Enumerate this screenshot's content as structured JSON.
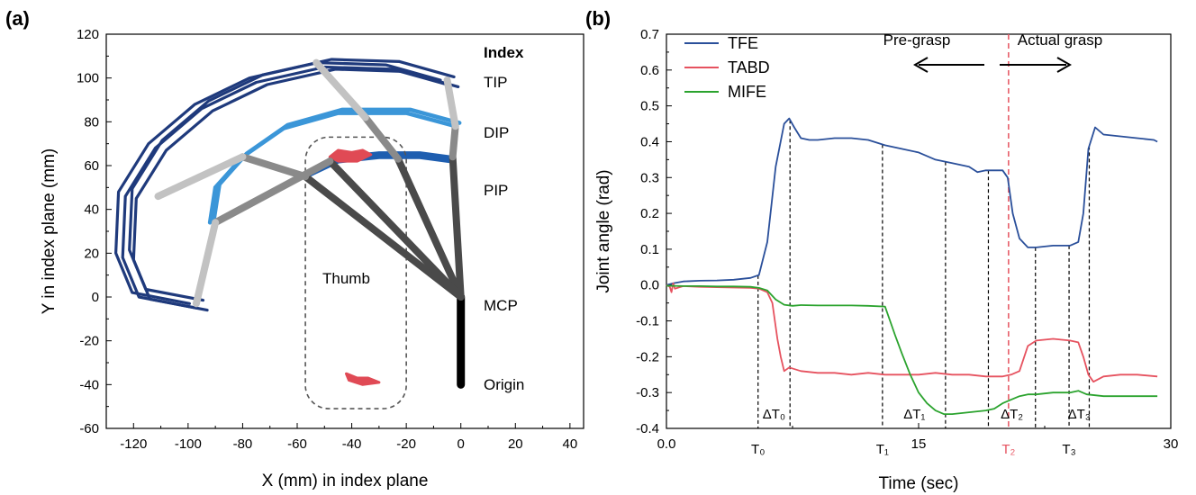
{
  "chart_data": [
    {
      "panel": "(a)",
      "type": "scatter",
      "xlabel": "X (mm) in index plane",
      "ylabel": "Y in index plane (mm)",
      "xlim": [
        -130,
        45
      ],
      "ylim": [
        -60,
        120
      ],
      "xticks": [
        "-120",
        "-100",
        "-80",
        "-60",
        "-40",
        "-20",
        "0",
        "20",
        "40"
      ],
      "yticks": [
        "120",
        "100",
        "80",
        "60",
        "40",
        "20",
        "0",
        "-20",
        "-40",
        "-60"
      ],
      "grid": false,
      "colors": {
        "tip": "#1f3a7c",
        "dip": "#3b96d8",
        "pip": "#1e5eb0",
        "thumb": "#e04a55",
        "link_light": "#c2c2c2",
        "link_mid": "#8a8a8a",
        "link_dark": "#4a4a4a",
        "origin": "#000000"
      },
      "annotations": {
        "index": "Index",
        "tip": "TIP",
        "dip": "DIP",
        "pip": "PIP",
        "mcp": "MCP",
        "origin": "Origin",
        "thumb": "Thumb"
      },
      "joints": {
        "origin": [
          0,
          -40
        ],
        "mcp": [
          0,
          0
        ],
        "pose_extended": {
          "pip": [
            -3,
            64
          ],
          "dip": [
            -2,
            78
          ],
          "tip": [
            -5,
            99
          ]
        },
        "pose_mid": {
          "pip": [
            -23,
            63
          ],
          "dip": [
            -35,
            82
          ],
          "tip": [
            -53,
            107
          ]
        },
        "pose_flexed": {
          "pip": [
            -57,
            55
          ],
          "dip": [
            -80,
            64
          ],
          "tip": [
            -111,
            46
          ]
        },
        "pose_curled": {
          "pip": [
            -48,
            62
          ],
          "dip": [
            -90,
            34
          ],
          "tip": [
            -97,
            -3
          ]
        }
      },
      "trajectories": {
        "tip": [
          [
            -5,
            99
          ],
          [
            -25,
            106
          ],
          [
            -50,
            107
          ],
          [
            -75,
            100
          ],
          [
            -95,
            88
          ],
          [
            -112,
            70
          ],
          [
            -123,
            48
          ],
          [
            -124,
            20
          ],
          [
            -118,
            2
          ],
          [
            -97,
            -3
          ]
        ],
        "dip": [
          [
            -2,
            78
          ],
          [
            -20,
            84
          ],
          [
            -45,
            84
          ],
          [
            -65,
            77
          ],
          [
            -80,
            64
          ],
          [
            -90,
            50
          ],
          [
            -92,
            34
          ]
        ],
        "pip": [
          [
            -3,
            62
          ],
          [
            -15,
            64
          ],
          [
            -30,
            64
          ],
          [
            -45,
            62
          ],
          [
            -57,
            55
          ]
        ]
      },
      "thumb_points": {
        "upper": [
          [
            -48,
            64
          ],
          [
            -45,
            67
          ],
          [
            -40,
            66
          ],
          [
            -36,
            67
          ],
          [
            -33,
            65
          ],
          [
            -38,
            62
          ],
          [
            -45,
            62
          ]
        ],
        "lower": [
          [
            -42,
            -35
          ],
          [
            -38,
            -37
          ],
          [
            -34,
            -37
          ],
          [
            -30,
            -39
          ],
          [
            -36,
            -40
          ],
          [
            -41,
            -38
          ]
        ]
      }
    },
    {
      "panel": "(b)",
      "type": "line",
      "xlabel": "Time (sec)",
      "ylabel": "Joint angle (rad)",
      "xlim": [
        0,
        30
      ],
      "ylim": [
        -0.4,
        0.7
      ],
      "xticks": [
        "0.0",
        "15",
        "30"
      ],
      "yticks": [
        "0.7",
        "0.6",
        "0.5",
        "0.4",
        "0.3",
        "0.2",
        "0.1",
        "0.0",
        "-0.1",
        "-0.2",
        "-0.3",
        "-0.4"
      ],
      "grid": false,
      "legend": "top-left",
      "series": [
        {
          "name": "TFE",
          "color": "#2a4f9a",
          "x": [
            0,
            0.4,
            1,
            2,
            3,
            4,
            5,
            5.5,
            6,
            6.5,
            7,
            7.3,
            7.6,
            8,
            8.5,
            9,
            10,
            11,
            12,
            13,
            14,
            15,
            16,
            17,
            18,
            18.5,
            19,
            19.5,
            20,
            20.3,
            20.6,
            21,
            21.5,
            22,
            23,
            24,
            24.5,
            24.8,
            25.1,
            25.5,
            26,
            27,
            28,
            29,
            29.2
          ],
          "values": [
            0.0,
            0.005,
            0.01,
            0.012,
            0.013,
            0.015,
            0.02,
            0.028,
            0.12,
            0.33,
            0.45,
            0.465,
            0.44,
            0.41,
            0.405,
            0.405,
            0.41,
            0.41,
            0.405,
            0.39,
            0.38,
            0.37,
            0.35,
            0.34,
            0.33,
            0.315,
            0.32,
            0.32,
            0.32,
            0.3,
            0.2,
            0.13,
            0.105,
            0.105,
            0.11,
            0.11,
            0.12,
            0.2,
            0.38,
            0.44,
            0.42,
            0.415,
            0.41,
            0.405,
            0.4
          ]
        },
        {
          "name": "TABD",
          "color": "#e6525f",
          "x": [
            0,
            0.2,
            0.3,
            0.4,
            0.5,
            1,
            2,
            3,
            4,
            5,
            5.5,
            6,
            6.3,
            6.6,
            6.8,
            7,
            7.3,
            8,
            9,
            10,
            11,
            12,
            13,
            14,
            15,
            16,
            17,
            18,
            19,
            20,
            20.5,
            21,
            21.5,
            22,
            23,
            24,
            24.5,
            24.8,
            25.1,
            25.4,
            26,
            27,
            28,
            29.2
          ],
          "values": [
            0.0,
            -0.005,
            -0.02,
            0.005,
            -0.01,
            -0.003,
            -0.005,
            -0.006,
            -0.007,
            -0.008,
            -0.01,
            -0.02,
            -0.05,
            -0.15,
            -0.2,
            -0.24,
            -0.23,
            -0.24,
            -0.245,
            -0.245,
            -0.25,
            -0.245,
            -0.25,
            -0.25,
            -0.25,
            -0.245,
            -0.25,
            -0.25,
            -0.255,
            -0.255,
            -0.25,
            -0.24,
            -0.17,
            -0.155,
            -0.15,
            -0.155,
            -0.16,
            -0.2,
            -0.25,
            -0.27,
            -0.255,
            -0.25,
            -0.25,
            -0.255
          ]
        },
        {
          "name": "MIFE",
          "color": "#2ba32e",
          "x": [
            0,
            1,
            2,
            3,
            4,
            5,
            5.5,
            6,
            6.5,
            7,
            7.5,
            8,
            9,
            10,
            11,
            12,
            13,
            13.3,
            13.6,
            14,
            14.5,
            15,
            15.5,
            16,
            16.5,
            17,
            18,
            19,
            19.5,
            20,
            20.5,
            21,
            21.5,
            22,
            23,
            24,
            24.5,
            25,
            26,
            27,
            28,
            29.2
          ],
          "values": [
            -0.002,
            -0.003,
            -0.003,
            -0.004,
            -0.004,
            -0.005,
            -0.008,
            -0.015,
            -0.04,
            -0.055,
            -0.058,
            -0.056,
            -0.057,
            -0.057,
            -0.057,
            -0.058,
            -0.06,
            -0.1,
            -0.14,
            -0.19,
            -0.25,
            -0.3,
            -0.33,
            -0.35,
            -0.36,
            -0.36,
            -0.355,
            -0.35,
            -0.345,
            -0.33,
            -0.32,
            -0.31,
            -0.305,
            -0.305,
            -0.3,
            -0.3,
            -0.295,
            -0.305,
            -0.31,
            -0.31,
            -0.31,
            -0.31
          ]
        }
      ],
      "vlines": {
        "black_dashed": [
          5.45,
          7.35,
          12.85,
          16.6,
          19.15,
          21.95,
          23.95,
          25.15
        ],
        "red_dashed": [
          20.35
        ]
      },
      "time_markers": [
        {
          "label": "T₀",
          "x": 5.45
        },
        {
          "label": "T₁",
          "x": 12.85
        },
        {
          "label": "T₂",
          "x": 20.35,
          "color": "#e6525f"
        },
        {
          "label": "T₃",
          "x": 23.95
        }
      ],
      "delta_labels": [
        {
          "label": "ΔT₀",
          "x": 6.4
        },
        {
          "label": "ΔT₁",
          "x": 14.75
        },
        {
          "label": "ΔT₂",
          "x": 20.55
        },
        {
          "label": "ΔT₃",
          "x": 24.55
        }
      ],
      "annotations": {
        "pre_grasp": "Pre-grasp",
        "actual_grasp": "Actual grasp"
      }
    }
  ]
}
